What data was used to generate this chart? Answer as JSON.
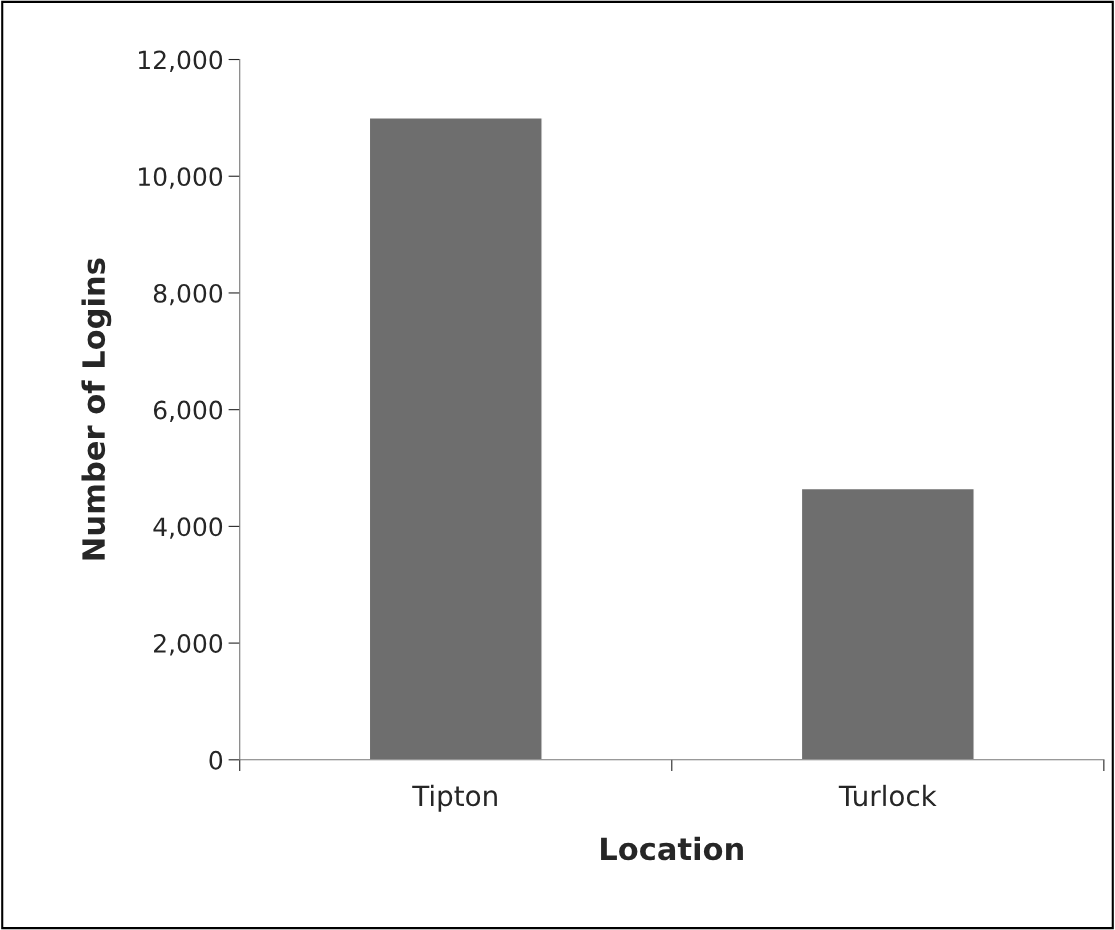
{
  "chart_data": {
    "type": "bar",
    "xlabel": "Location",
    "ylabel": "Number of Logins",
    "categories": [
      "Tipton",
      "Turlock"
    ],
    "series": [
      {
        "color": "#6e6e6e",
        "values": [
          11000,
          4650
        ]
      }
    ],
    "ylim": [
      0,
      12000
    ],
    "yticks": [
      {
        "value": 0,
        "label": "0"
      },
      {
        "value": 2000,
        "label": "2,000"
      },
      {
        "value": 4000,
        "label": "4,000"
      },
      {
        "value": 6000,
        "label": "6,000"
      },
      {
        "value": 8000,
        "label": "8,000"
      },
      {
        "value": 10000,
        "label": "10,000"
      },
      {
        "value": 12000,
        "label": "12,000"
      }
    ],
    "grid": false
  }
}
